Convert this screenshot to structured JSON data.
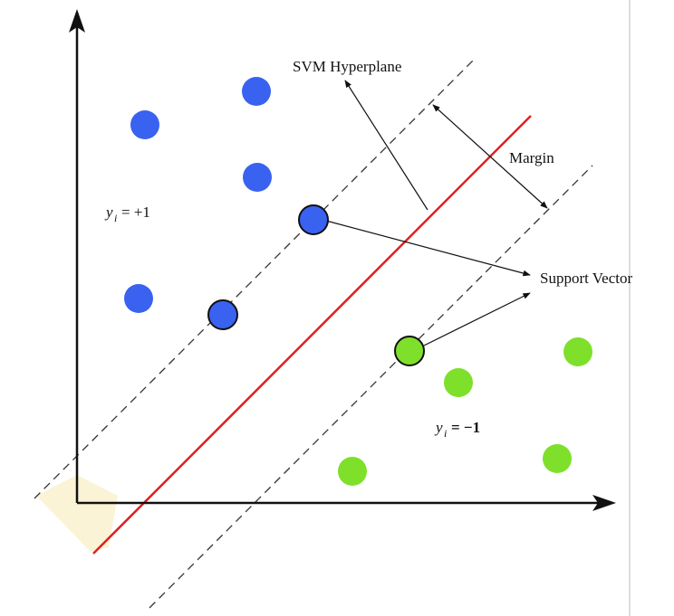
{
  "labels": {
    "hyperplane": "SVM Hyperplane",
    "margin": "Margin",
    "support_vector": "Support Vector",
    "class_pos_var": "y",
    "class_pos_sub": "i",
    "class_pos_value": "= +1",
    "class_neg_var": "y",
    "class_neg_sub": "i",
    "class_neg_value": "= −1"
  },
  "colors": {
    "positive_class": "#3a62f0",
    "negative_class": "#7ee02a",
    "hyperplane": "#e02020",
    "axis": "#111111",
    "margin_line": "#333333"
  },
  "icons": {
    "x_axis_head": "arrowhead-icon",
    "y_axis_head": "arrowhead-icon"
  }
}
